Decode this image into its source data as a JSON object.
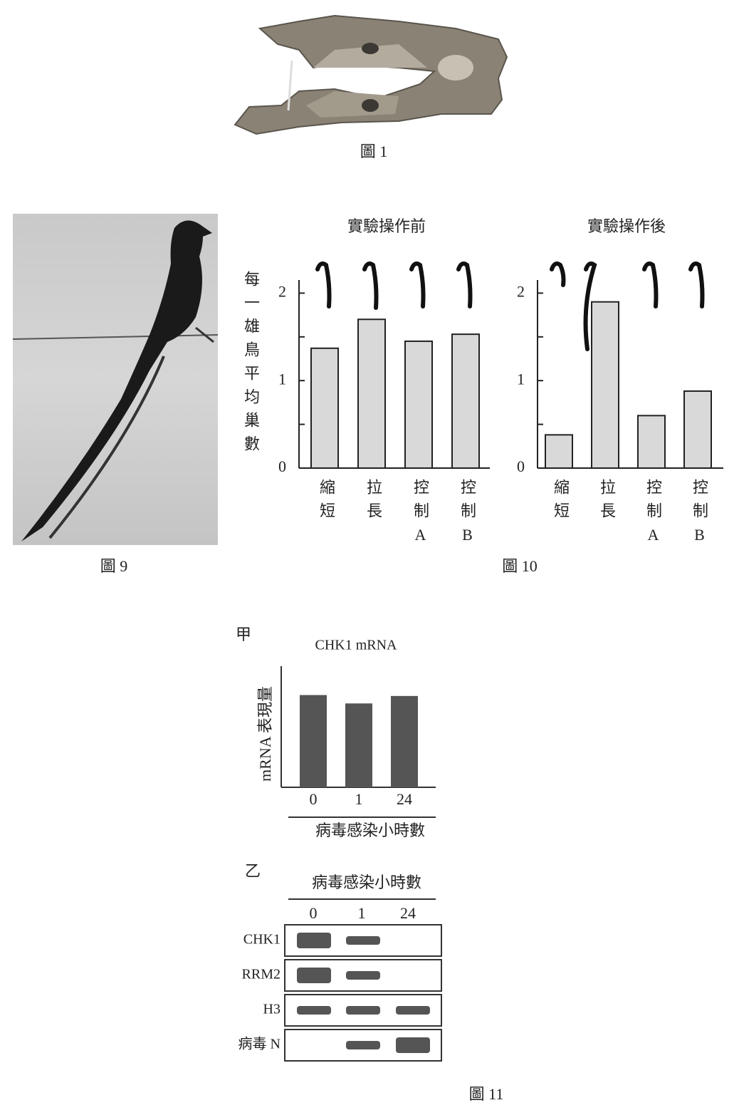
{
  "figure1": {
    "caption": "圖 1"
  },
  "figure9": {
    "caption": "圖 9"
  },
  "figure10": {
    "caption": "圖 10",
    "y_label": "每一雄鳥平均巢數",
    "charts": [
      {
        "type": "bar",
        "title": "實驗操作前",
        "categories": [
          "縮短",
          "拉長",
          "控制A",
          "控制B"
        ],
        "values": [
          1.37,
          1.7,
          1.45,
          1.53
        ],
        "color": "#d9d9d9",
        "ylim": [
          0,
          2.15
        ],
        "yticks": [
          0,
          1,
          2
        ],
        "yminor": [
          0.5,
          1.5
        ]
      },
      {
        "type": "bar",
        "title": "實驗操作後",
        "categories": [
          "縮短",
          "拉長",
          "控制A",
          "控制B"
        ],
        "values": [
          0.38,
          1.9,
          0.6,
          0.88
        ],
        "color": "#d9d9d9",
        "ylim": [
          0,
          2.15
        ],
        "yticks": [
          0,
          1,
          2
        ],
        "yminor": [
          0.5,
          1.5
        ]
      }
    ]
  },
  "figure11": {
    "caption": "圖 11",
    "panel_a": {
      "type": "bar",
      "label": "甲",
      "title": "CHK1 mRNA",
      "y_label": "mRNA 表現量",
      "x_label": "病毒感染小時數",
      "categories": [
        "0",
        "1",
        "24"
      ],
      "values": [
        0.99,
        0.9,
        0.98
      ],
      "color": "#555555",
      "ylim": [
        0,
        1.3
      ]
    },
    "panel_b": {
      "label": "乙",
      "header": "病毒感染小時數",
      "columns": [
        "0",
        "1",
        "24"
      ],
      "rows": [
        {
          "name": "CHK1",
          "bands": [
            2,
            1,
            0
          ]
        },
        {
          "name": "RRM2",
          "bands": [
            2,
            1,
            0
          ]
        },
        {
          "name": "H3",
          "bands": [
            1,
            1,
            1
          ]
        },
        {
          "name": "病毒 N",
          "bands": [
            0,
            1,
            2
          ]
        }
      ]
    }
  }
}
